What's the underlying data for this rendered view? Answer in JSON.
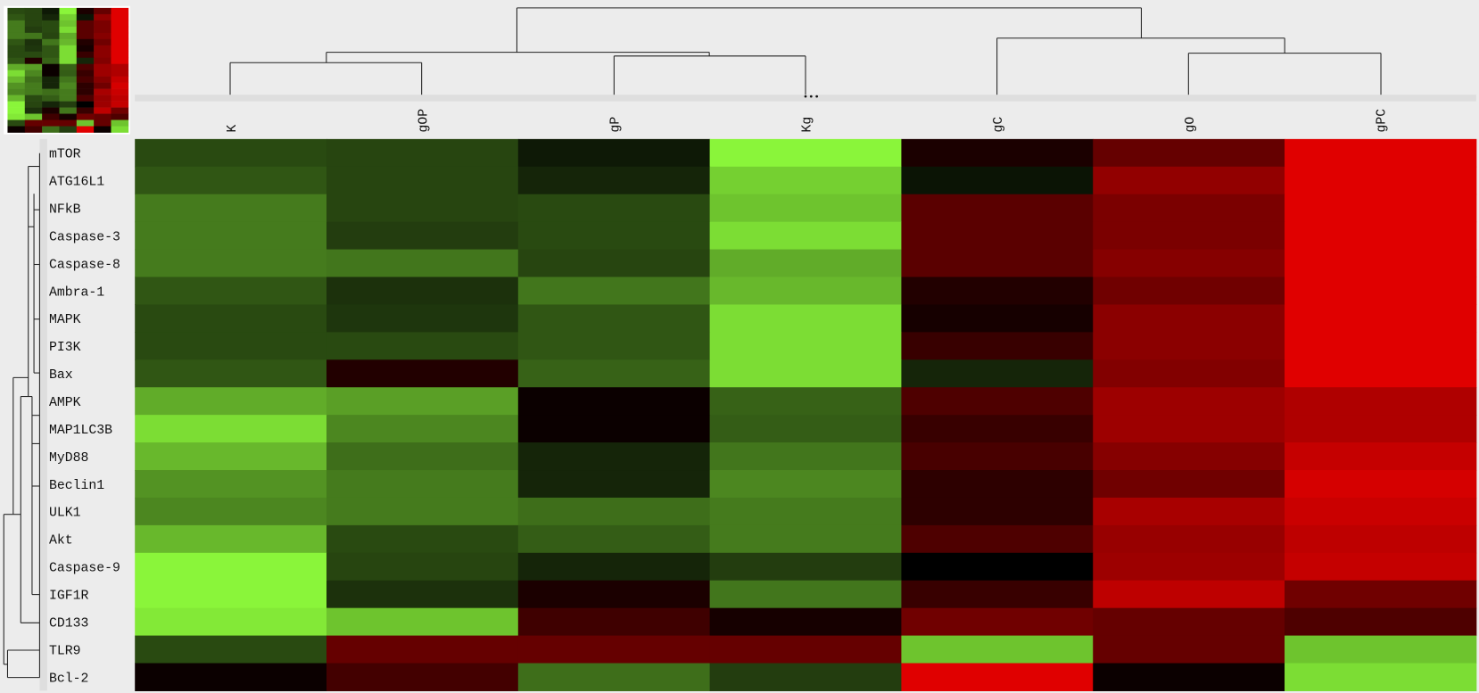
{
  "chart_data": {
    "type": "heatmap",
    "columns": [
      "K",
      "gOP",
      "gP",
      "Kg",
      "gC",
      "gO",
      "gPC"
    ],
    "rows": [
      "mTOR",
      "ATG16L1",
      "NFkB",
      "Caspase-3",
      "Caspase-8",
      "Ambra-1",
      "MAPK",
      "PI3K",
      "Bax",
      "AMPK",
      "MAP1LC3B",
      "MyD88",
      "Beclin1",
      "ULK1",
      "Akt",
      "Caspase-9",
      "IGF1R",
      "CD133",
      "TLR9",
      "Bcl-2"
    ],
    "values": [
      [
        -0.3,
        -0.28,
        -0.1,
        -1,
        0.12,
        0.45,
        1
      ],
      [
        -0.35,
        -0.28,
        -0.15,
        -0.85,
        -0.08,
        0.65,
        1
      ],
      [
        -0.5,
        -0.28,
        -0.3,
        -0.8,
        0.4,
        0.55,
        1
      ],
      [
        -0.5,
        -0.25,
        -0.3,
        -0.9,
        0.4,
        0.55,
        1
      ],
      [
        -0.5,
        -0.48,
        -0.28,
        -0.7,
        0.4,
        0.6,
        1
      ],
      [
        -0.35,
        -0.2,
        -0.48,
        -0.75,
        0.15,
        0.5,
        1
      ],
      [
        -0.3,
        -0.22,
        -0.35,
        -0.9,
        0.1,
        0.62,
        1
      ],
      [
        -0.3,
        -0.3,
        -0.35,
        -0.9,
        0.25,
        0.62,
        1
      ],
      [
        -0.35,
        0.15,
        -0.4,
        -0.9,
        -0.15,
        0.58,
        1
      ],
      [
        -0.7,
        -0.65,
        0.05,
        -0.4,
        0.35,
        0.7,
        0.78
      ],
      [
        -0.9,
        -0.55,
        0.05,
        -0.38,
        0.25,
        0.7,
        0.78
      ],
      [
        -0.75,
        -0.45,
        -0.15,
        -0.48,
        0.32,
        0.6,
        0.88
      ],
      [
        -0.6,
        -0.5,
        -0.15,
        -0.55,
        0.2,
        0.5,
        0.95
      ],
      [
        -0.55,
        -0.5,
        -0.45,
        -0.5,
        0.2,
        0.75,
        0.9
      ],
      [
        -0.75,
        -0.3,
        -0.38,
        -0.5,
        0.35,
        0.68,
        0.85
      ],
      [
        -1,
        -0.28,
        -0.15,
        -0.25,
        0,
        0.7,
        0.88
      ],
      [
        -1,
        -0.2,
        0.12,
        -0.48,
        0.25,
        0.85,
        0.5
      ],
      [
        -0.95,
        -0.8,
        0.28,
        0.1,
        0.5,
        0.45,
        0.35
      ],
      [
        -0.3,
        0.45,
        0.45,
        0.45,
        -0.8,
        0.45,
        -0.8
      ],
      [
        0.05,
        0.3,
        -0.45,
        -0.25,
        1,
        0.05,
        -0.9
      ]
    ],
    "clim": [
      -1,
      1
    ],
    "low_color": "#8af53a",
    "mid_color": "#000000",
    "high_color": "#e00000"
  }
}
